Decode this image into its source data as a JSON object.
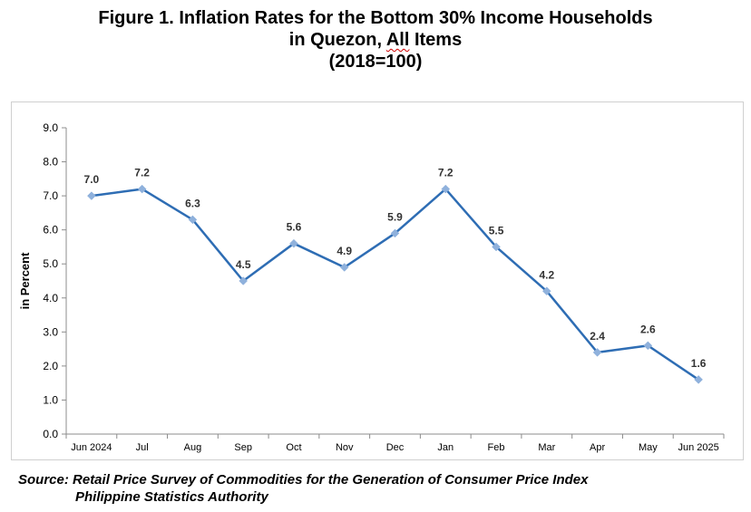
{
  "title": {
    "line1": "Figure 1. Inflation Rates for the Bottom 30% Income Households",
    "line2_pre": "in Quezon, ",
    "line2_wavy": "All",
    "line2_post": " Items",
    "line3": "(2018=100)"
  },
  "source": {
    "line1": "Source: Retail Price Survey of Commodities for the Generation of Consumer Price Index",
    "line2": "Philippine Statistics Authority"
  },
  "colors": {
    "line": "#2e6db4",
    "marker": "#8fb1dc",
    "axis": "#8c8c8c",
    "text": "#000000",
    "label": "#333333"
  },
  "chart_data": {
    "type": "line",
    "ylabel": "in Percent",
    "xlabel": "",
    "ylim": [
      0,
      9
    ],
    "yticks": [
      "0.0",
      "1.0",
      "2.0",
      "3.0",
      "4.0",
      "5.0",
      "6.0",
      "7.0",
      "8.0",
      "9.0"
    ],
    "grid": false,
    "legend": "none",
    "categories": [
      "Jun 2024",
      "Jul",
      "Aug",
      "Sep",
      "Oct",
      "Nov",
      "Dec",
      "Jan",
      "Feb",
      "Mar",
      "Apr",
      "May",
      "Jun 2025"
    ],
    "values": [
      7.0,
      7.2,
      6.3,
      4.5,
      5.6,
      4.9,
      5.9,
      7.2,
      5.5,
      4.2,
      2.4,
      2.6,
      1.6
    ],
    "data_labels": [
      "7.0",
      "7.2",
      "6.3",
      "4.5",
      "5.6",
      "4.9",
      "5.9",
      "7.2",
      "5.5",
      "4.2",
      "2.4",
      "2.6",
      "1.6"
    ]
  }
}
